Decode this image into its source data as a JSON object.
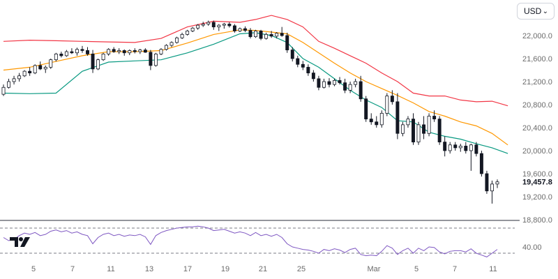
{
  "currency_selector": {
    "label": "USD",
    "icon": "chevron-down-icon"
  },
  "logo": {
    "icon": "tradingview-logo-icon"
  },
  "chart_data": [
    {
      "type": "candlestick",
      "overlay": "bollinger-bands",
      "ylim": [
        18800,
        22400
      ],
      "y_ticks": [
        "22,000.0",
        "21,600.0",
        "21,200.0",
        "20,800.0",
        "20,400.0",
        "20,000.0",
        "19,600.0",
        "19,200.0",
        "18,800.0"
      ],
      "y_tick_values": [
        22000,
        21600,
        21200,
        20800,
        20400,
        20000,
        19600,
        19200,
        18800
      ],
      "last_price_label": "19,457.8",
      "last_price": 19457.8,
      "x_ticks": [
        "5",
        "7",
        "11",
        "13",
        "17",
        "19",
        "21",
        "25",
        "Mar",
        "5",
        "7",
        "11"
      ],
      "colors": {
        "up": "#131722",
        "down": "#131722",
        "upper_band": "#f23645",
        "middle_band": "#ff9800",
        "lower_band": "#089981"
      },
      "candles": [
        [
          20980,
          21150,
          20950,
          21100
        ],
        [
          21100,
          21250,
          21080,
          21200
        ],
        [
          21200,
          21300,
          21150,
          21250
        ],
        [
          21250,
          21350,
          21200,
          21300
        ],
        [
          21300,
          21400,
          21280,
          21380
        ],
        [
          21380,
          21450,
          21300,
          21350
        ],
        [
          21350,
          21500,
          21330,
          21480
        ],
        [
          21480,
          21550,
          21400,
          21420
        ],
        [
          21420,
          21480,
          21350,
          21450
        ],
        [
          21450,
          21600,
          21420,
          21580
        ],
        [
          21580,
          21700,
          21550,
          21680
        ],
        [
          21680,
          21720,
          21620,
          21650
        ],
        [
          21650,
          21750,
          21630,
          21720
        ],
        [
          21720,
          21780,
          21680,
          21700
        ],
        [
          21700,
          21790,
          21650,
          21760
        ],
        [
          21760,
          21820,
          21700,
          21740
        ],
        [
          21740,
          21800,
          21650,
          21680
        ],
        [
          21680,
          21750,
          21350,
          21420
        ],
        [
          21420,
          21600,
          21400,
          21580
        ],
        [
          21580,
          21700,
          21560,
          21680
        ],
        [
          21680,
          21780,
          21650,
          21760
        ],
        [
          21760,
          21800,
          21700,
          21720
        ],
        [
          21720,
          21780,
          21680,
          21740
        ],
        [
          21740,
          21760,
          21650,
          21700
        ],
        [
          21700,
          21760,
          21660,
          21740
        ],
        [
          21740,
          21780,
          21690,
          21720
        ],
        [
          21720,
          21770,
          21680,
          21750
        ],
        [
          21750,
          21780,
          21700,
          21710
        ],
        [
          21710,
          21750,
          21400,
          21480
        ],
        [
          21480,
          21700,
          21460,
          21680
        ],
        [
          21680,
          21780,
          21660,
          21760
        ],
        [
          21760,
          21850,
          21740,
          21830
        ],
        [
          21830,
          21900,
          21800,
          21880
        ],
        [
          21880,
          21980,
          21860,
          21960
        ],
        [
          21960,
          22050,
          21940,
          22020
        ],
        [
          22020,
          22100,
          22000,
          22080
        ],
        [
          22080,
          22150,
          22060,
          22130
        ],
        [
          22130,
          22200,
          22100,
          22180
        ],
        [
          22180,
          22240,
          22150,
          22200
        ],
        [
          22200,
          22260,
          22170,
          22230
        ],
        [
          22230,
          22260,
          22100,
          22150
        ],
        [
          22150,
          22200,
          22080,
          22180
        ],
        [
          22180,
          22220,
          22120,
          22200
        ],
        [
          22200,
          22230,
          22140,
          22170
        ],
        [
          22170,
          22200,
          22050,
          22080
        ],
        [
          22080,
          22140,
          22060,
          22120
        ],
        [
          22120,
          22160,
          22060,
          22090
        ],
        [
          22090,
          22130,
          21950,
          21980
        ],
        [
          21980,
          22100,
          21960,
          22080
        ],
        [
          22080,
          22100,
          21920,
          21950
        ],
        [
          21950,
          22050,
          21930,
          22020
        ],
        [
          22020,
          22080,
          21960,
          21990
        ],
        [
          21990,
          22060,
          21950,
          22040
        ],
        [
          22040,
          22150,
          21980,
          22000
        ],
        [
          22000,
          22050,
          21700,
          21750
        ],
        [
          21750,
          21800,
          21550,
          21600
        ],
        [
          21600,
          21650,
          21450,
          21500
        ],
        [
          21500,
          21560,
          21400,
          21450
        ],
        [
          21450,
          21500,
          21300,
          21350
        ],
        [
          21350,
          21400,
          21200,
          21250
        ],
        [
          21250,
          21300,
          21050,
          21100
        ],
        [
          21100,
          21250,
          21080,
          21200
        ],
        [
          21200,
          21260,
          21100,
          21150
        ],
        [
          21150,
          21250,
          21120,
          21220
        ],
        [
          21220,
          21280,
          21150,
          21180
        ],
        [
          21180,
          21250,
          21000,
          21050
        ],
        [
          21050,
          21200,
          21000,
          21150
        ],
        [
          21150,
          21250,
          21100,
          21200
        ],
        [
          21200,
          21300,
          20850,
          20900
        ],
        [
          20900,
          20950,
          20500,
          20550
        ],
        [
          20550,
          20650,
          20450,
          20500
        ],
        [
          20500,
          20600,
          20400,
          20450
        ],
        [
          20450,
          20700,
          20400,
          20650
        ],
        [
          20650,
          21000,
          20600,
          20950
        ],
        [
          20950,
          21050,
          20800,
          20850
        ],
        [
          20850,
          21000,
          20200,
          20300
        ],
        [
          20300,
          20500,
          20250,
          20450
        ],
        [
          20450,
          20600,
          20400,
          20550
        ],
        [
          20550,
          20650,
          20100,
          20150
        ],
        [
          20150,
          20500,
          20100,
          20450
        ],
        [
          20450,
          20600,
          20200,
          20300
        ],
        [
          20300,
          20650,
          20250,
          20600
        ],
        [
          20600,
          20700,
          20500,
          20550
        ],
        [
          20550,
          20600,
          20100,
          20150
        ],
        [
          20150,
          20250,
          19900,
          20000
        ],
        [
          20000,
          20150,
          19950,
          20100
        ],
        [
          20100,
          20150,
          20000,
          20050
        ],
        [
          20050,
          20120,
          19980,
          20080
        ],
        [
          20080,
          20150,
          19950,
          20000
        ],
        [
          20000,
          20120,
          19650,
          20100
        ],
        [
          20100,
          20150,
          19900,
          19950
        ],
        [
          19950,
          20000,
          19550,
          19600
        ],
        [
          19600,
          19650,
          19250,
          19300
        ],
        [
          19300,
          19480,
          19080,
          19420
        ],
        [
          19420,
          19500,
          19350,
          19457.8
        ]
      ],
      "bands": {
        "upper": [
          [
            0,
            21900
          ],
          [
            5,
            21920
          ],
          [
            10,
            21910
          ],
          [
            15,
            21900
          ],
          [
            20,
            21890
          ],
          [
            25,
            21880
          ],
          [
            30,
            21950
          ],
          [
            35,
            22150
          ],
          [
            40,
            22250
          ],
          [
            45,
            22230
          ],
          [
            48,
            22280
          ],
          [
            51,
            22350
          ],
          [
            54,
            22280
          ],
          [
            57,
            22150
          ],
          [
            60,
            21900
          ],
          [
            63,
            21780
          ],
          [
            66,
            21650
          ],
          [
            69,
            21520
          ],
          [
            72,
            21350
          ],
          [
            75,
            21200
          ],
          [
            78,
            21000
          ],
          [
            81,
            20950
          ],
          [
            84,
            20950
          ],
          [
            87,
            20880
          ],
          [
            90,
            20850
          ],
          [
            93,
            20860
          ],
          [
            96,
            20780
          ]
        ],
        "middle": [
          [
            0,
            21400
          ],
          [
            5,
            21450
          ],
          [
            10,
            21550
          ],
          [
            15,
            21650
          ],
          [
            20,
            21720
          ],
          [
            25,
            21720
          ],
          [
            30,
            21740
          ],
          [
            35,
            21870
          ],
          [
            40,
            22020
          ],
          [
            45,
            22100
          ],
          [
            48,
            22090
          ],
          [
            51,
            22060
          ],
          [
            54,
            22030
          ],
          [
            57,
            21880
          ],
          [
            60,
            21700
          ],
          [
            63,
            21520
          ],
          [
            66,
            21350
          ],
          [
            69,
            21200
          ],
          [
            72,
            21080
          ],
          [
            75,
            20960
          ],
          [
            78,
            20830
          ],
          [
            81,
            20680
          ],
          [
            84,
            20600
          ],
          [
            87,
            20500
          ],
          [
            90,
            20430
          ],
          [
            93,
            20300
          ],
          [
            96,
            20100
          ]
        ],
        "lower": [
          [
            0,
            21000
          ],
          [
            5,
            20990
          ],
          [
            10,
            21000
          ],
          [
            15,
            21380
          ],
          [
            20,
            21540
          ],
          [
            25,
            21560
          ],
          [
            30,
            21580
          ],
          [
            35,
            21700
          ],
          [
            40,
            21850
          ],
          [
            45,
            22030
          ],
          [
            48,
            22050
          ],
          [
            51,
            22000
          ],
          [
            54,
            21880
          ],
          [
            57,
            21600
          ],
          [
            60,
            21450
          ],
          [
            63,
            21250
          ],
          [
            66,
            21050
          ],
          [
            69,
            20880
          ],
          [
            72,
            20750
          ],
          [
            75,
            20520
          ],
          [
            78,
            20500
          ],
          [
            81,
            20320
          ],
          [
            84,
            20250
          ],
          [
            87,
            20200
          ],
          [
            90,
            20120
          ],
          [
            93,
            20050
          ],
          [
            96,
            19950
          ]
        ]
      }
    },
    {
      "type": "line",
      "indicator": "RSI",
      "y_ticks": [
        "40.00"
      ],
      "reference_levels": [
        70,
        30
      ],
      "ylim": [
        20,
        80
      ],
      "color": "#7e57c2",
      "values": [
        55,
        50,
        52,
        58,
        62,
        60,
        63,
        58,
        60,
        65,
        67,
        64,
        66,
        62,
        64,
        60,
        58,
        45,
        55,
        60,
        62,
        58,
        60,
        57,
        59,
        58,
        60,
        56,
        44,
        58,
        63,
        66,
        68,
        70,
        71,
        72,
        72,
        73,
        72,
        70,
        66,
        67,
        68,
        65,
        62,
        64,
        62,
        58,
        63,
        58,
        60,
        57,
        60,
        55,
        45,
        40,
        38,
        36,
        35,
        33,
        30,
        36,
        34,
        37,
        35,
        31,
        36,
        38,
        28,
        26,
        27,
        26,
        33,
        42,
        38,
        28,
        34,
        38,
        30,
        38,
        34,
        40,
        39,
        32,
        29,
        33,
        34,
        34,
        32,
        37,
        30,
        27,
        24,
        30,
        36
      ]
    }
  ]
}
